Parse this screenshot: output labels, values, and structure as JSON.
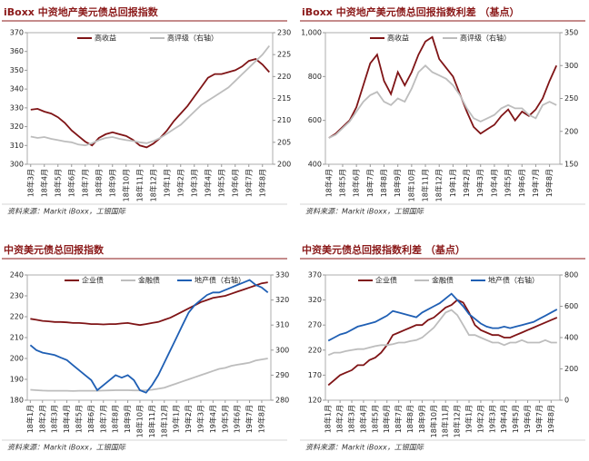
{
  "chart_data": [
    {
      "type": "line",
      "title": "iBoxx 中资地产美元债总回报指数",
      "source": "资料来源：Markit iBoxx，工银国际",
      "legend": "top",
      "categories": [
        "18年3月",
        null,
        "18年4月",
        null,
        "18年5月",
        null,
        "18年6月",
        null,
        "18年7月",
        null,
        "18年8月",
        null,
        "18年9月",
        null,
        "18年10月",
        null,
        "18年11月",
        null,
        "18年12月",
        null,
        "19年1月",
        null,
        "19年2月",
        null,
        "19年3月",
        null,
        "19年4月",
        null,
        "19年5月",
        null,
        "19年6月",
        null,
        "19年7月",
        null,
        "19年8月",
        null
      ],
      "ylim": [
        300,
        370
      ],
      "yticks": [
        300,
        310,
        320,
        330,
        340,
        350,
        360,
        370
      ],
      "y2lim": [
        200,
        230
      ],
      "y2ticks": [
        200,
        205,
        210,
        215,
        220,
        225,
        230
      ],
      "series": [
        {
          "name": "高收益",
          "color": "#7f1416",
          "values": [
            329,
            329.5,
            328,
            327,
            325,
            322,
            318,
            315,
            312,
            310,
            314,
            316,
            317,
            316,
            315,
            313,
            310,
            309,
            311,
            314,
            318,
            323,
            327,
            331,
            336,
            341,
            346,
            348,
            348,
            349,
            350,
            352,
            355,
            356,
            353,
            349
          ]
        },
        {
          "name": "高评级（右轴）",
          "color": "#bdbdbd",
          "axis": "y2",
          "values": [
            206.3,
            206,
            206.2,
            205.8,
            205.5,
            205.2,
            205,
            204.5,
            204.3,
            204.8,
            205.5,
            206,
            206.2,
            205.8,
            205.5,
            205.3,
            205,
            204.8,
            205.3,
            206,
            207,
            208,
            209,
            210.5,
            212,
            213.5,
            214.5,
            215.5,
            216.5,
            217.5,
            219,
            220.5,
            222,
            223.5,
            225,
            227
          ]
        }
      ]
    },
    {
      "type": "line",
      "title": "iBoxx 中资地产美元债总回报指数利差 （基点）",
      "source": "资料来源：Markit iBoxx，工银国际",
      "legend": "top",
      "categories": [
        "18年4月",
        null,
        "18年5月",
        null,
        "18年6月",
        null,
        "18年7月",
        null,
        "18年8月",
        null,
        "18年9月",
        null,
        "18年10月",
        null,
        "18年11月",
        null,
        "18年12月",
        null,
        "19年1月",
        null,
        "19年2月",
        null,
        "19年3月",
        null,
        "19年4月",
        null,
        "19年5月",
        null,
        "19年6月",
        null,
        "19年7月",
        null,
        "19年8月",
        null
      ],
      "ylim": [
        400,
        1000
      ],
      "yticks": [
        400,
        600,
        800,
        {
          "value": 1000,
          "label": "1,000"
        }
      ],
      "y2lim": [
        150,
        350
      ],
      "y2ticks": [
        150,
        200,
        250,
        300,
        350
      ],
      "series": [
        {
          "name": "高收益",
          "color": "#7f1416",
          "values": [
            520,
            540,
            570,
            600,
            660,
            760,
            860,
            900,
            780,
            720,
            820,
            760,
            820,
            900,
            960,
            980,
            880,
            840,
            800,
            720,
            640,
            570,
            540,
            560,
            580,
            620,
            650,
            600,
            640,
            620,
            650,
            700,
            780,
            850
          ]
        },
        {
          "name": "高评级（右轴）",
          "color": "#bdbdbd",
          "axis": "y2",
          "values": [
            190,
            195,
            205,
            215,
            230,
            245,
            255,
            260,
            245,
            240,
            250,
            245,
            265,
            290,
            300,
            290,
            285,
            280,
            270,
            255,
            235,
            220,
            215,
            220,
            225,
            235,
            240,
            235,
            235,
            225,
            220,
            240,
            245,
            240
          ]
        }
      ]
    },
    {
      "type": "line",
      "title": "中资美元债总回报指数",
      "source": "资料来源：Markit iBoxx，工银国际",
      "legend": "top",
      "categories": [
        "18年1月",
        null,
        "18年2月",
        null,
        "18年3月",
        null,
        "18年4月",
        null,
        "18年5月",
        null,
        "18年6月",
        null,
        "18年7月",
        null,
        "18年8月",
        null,
        "18年9月",
        null,
        "18年10月",
        null,
        "18年11月",
        null,
        "18年12月",
        null,
        "19年1月",
        null,
        "19年2月",
        null,
        "19年3月",
        null,
        "19年4月",
        null,
        "19年5月",
        null,
        "19年6月",
        null,
        "19年7月",
        null,
        "19年8月",
        null
      ],
      "ylim": [
        180,
        240
      ],
      "yticks": [
        180,
        190,
        200,
        210,
        220,
        230,
        240
      ],
      "y2lim": [
        280,
        330
      ],
      "y2ticks": [
        280,
        290,
        300,
        310,
        320,
        330
      ],
      "series": [
        {
          "name": "企业债",
          "color": "#7f1416",
          "values": [
            219,
            218.5,
            218,
            217.8,
            217.5,
            217.5,
            217.3,
            217,
            217,
            216.8,
            216.5,
            216.5,
            216.3,
            216.5,
            216.5,
            216.8,
            217,
            216.5,
            216,
            216.5,
            217,
            217.5,
            218.5,
            219.5,
            221,
            222.5,
            224,
            225.5,
            227,
            228,
            229,
            229.5,
            230,
            231,
            232,
            233,
            234,
            235,
            236,
            236.5
          ]
        },
        {
          "name": "金融债",
          "color": "#bdbdbd",
          "values": [
            185,
            184.8,
            184.6,
            184.5,
            184.5,
            184.5,
            184.5,
            184.4,
            184.5,
            184.5,
            184.5,
            184.5,
            184.6,
            184.7,
            184.8,
            184.8,
            184.8,
            184.7,
            184.7,
            184.8,
            185,
            185.5,
            186,
            187,
            188,
            189,
            190,
            191,
            192,
            193,
            194,
            195,
            195.5,
            196.5,
            197,
            197.5,
            198,
            199,
            199.5,
            200
          ]
        },
        {
          "name": "地产债（右轴）",
          "color": "#1f5fb4",
          "axis": "y2",
          "values": [
            302,
            300,
            299,
            298.5,
            298,
            297,
            296,
            294,
            292,
            290,
            288,
            284,
            286,
            288,
            290,
            289,
            290,
            288,
            284,
            283,
            286,
            290,
            295,
            300,
            305,
            310,
            315,
            318,
            320,
            322,
            323,
            323,
            324,
            325,
            326,
            327,
            328,
            326,
            325,
            323
          ]
        }
      ]
    },
    {
      "type": "line",
      "title": "中资美元债总回报指数利差 （基点）",
      "source": "资料来源：Markit iBoxx，工银国际",
      "legend": "top",
      "categories": [
        "18年1月",
        null,
        "18年2月",
        null,
        "18年3月",
        null,
        "18年4月",
        null,
        "18年5月",
        null,
        "18年6月",
        null,
        "18年7月",
        null,
        "18年8月",
        null,
        "18年9月",
        null,
        "18年10月",
        null,
        "18年11月",
        null,
        "18年12月",
        null,
        "19年1月",
        null,
        "19年2月",
        null,
        "19年3月",
        null,
        "19年4月",
        null,
        "19年5月",
        null,
        "19年6月",
        null,
        "19年7月",
        null,
        "19年8月",
        null
      ],
      "ylim": [
        120,
        370
      ],
      "yticks": [
        120,
        170,
        220,
        270,
        320,
        370
      ],
      "y2lim": [
        0,
        800
      ],
      "y2ticks": [
        0,
        200,
        400,
        600,
        800
      ],
      "series": [
        {
          "name": "企业债",
          "color": "#7f1416",
          "values": [
            150,
            160,
            170,
            175,
            180,
            190,
            190,
            200,
            205,
            215,
            230,
            250,
            255,
            260,
            265,
            270,
            270,
            280,
            285,
            295,
            305,
            310,
            320,
            315,
            295,
            270,
            260,
            255,
            250,
            250,
            245,
            245,
            250,
            255,
            260,
            265,
            270,
            275,
            280,
            285
          ]
        },
        {
          "name": "金融债",
          "color": "#bdbdbd",
          "values": [
            210,
            215,
            215,
            218,
            220,
            222,
            222,
            225,
            228,
            230,
            230,
            232,
            235,
            235,
            238,
            240,
            245,
            255,
            265,
            280,
            295,
            300,
            290,
            270,
            250,
            250,
            245,
            240,
            235,
            235,
            230,
            235,
            235,
            240,
            235,
            235,
            235,
            240,
            235,
            235
          ]
        },
        {
          "name": "地产债（右轴）",
          "color": "#1f5fb4",
          "axis": "y2",
          "values": [
            380,
            400,
            420,
            430,
            450,
            470,
            480,
            490,
            500,
            520,
            540,
            570,
            560,
            550,
            540,
            530,
            560,
            580,
            600,
            620,
            650,
            680,
            640,
            600,
            550,
            520,
            490,
            470,
            460,
            460,
            470,
            460,
            470,
            480,
            490,
            500,
            520,
            540,
            560,
            580
          ]
        }
      ]
    }
  ]
}
